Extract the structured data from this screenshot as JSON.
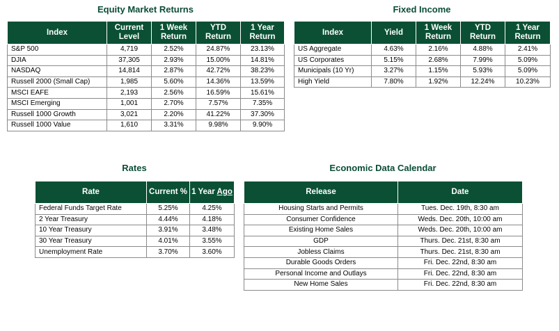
{
  "equity": {
    "title": "Equity Market Returns",
    "headers": [
      "Index",
      "Current Level",
      "1 Week Return",
      "YTD Return",
      "1 Year Return"
    ],
    "rows": [
      [
        "S&P 500",
        "4,719",
        "2.52%",
        "24.87%",
        "23.13%"
      ],
      [
        "DJIA",
        "37,305",
        "2.93%",
        "15.00%",
        "14.81%"
      ],
      [
        "NASDAQ",
        "14,814",
        "2.87%",
        "42.72%",
        "38.23%"
      ],
      [
        "Russell 2000 (Small Cap)",
        "1,985",
        "5.60%",
        "14.36%",
        "13.59%"
      ],
      [
        "MSCI EAFE",
        "2,193",
        "2.56%",
        "16.59%",
        "15.61%"
      ],
      [
        "MSCI Emerging",
        "1,001",
        "2.70%",
        "7.57%",
        "7.35%"
      ],
      [
        "Russell 1000 Growth",
        "3,021",
        "2.20%",
        "41.22%",
        "37.30%"
      ],
      [
        "Russell 1000 Value",
        "1,610",
        "3.31%",
        "9.98%",
        "9.90%"
      ]
    ]
  },
  "fixed": {
    "title": "Fixed Income",
    "headers": [
      "Index",
      "Yield",
      "1 Week Return",
      "YTD Return",
      "1 Year Return"
    ],
    "rows": [
      [
        "US Aggregate",
        "4.63%",
        "2.16%",
        "4.88%",
        "2.41%"
      ],
      [
        "US Corporates",
        "5.15%",
        "2.68%",
        "7.99%",
        "5.09%"
      ],
      [
        "Municipals (10 Yr)",
        "3.27%",
        "1.15%",
        "5.93%",
        "5.09%"
      ],
      [
        "High Yield",
        "7.80%",
        "1.92%",
        "12.24%",
        "10.23%"
      ]
    ]
  },
  "rates": {
    "title": "Rates",
    "headers": [
      "Rate",
      "Current %",
      "1 Year Ago"
    ],
    "rows": [
      [
        "Federal Funds Target Rate",
        "5.25%",
        "4.25%"
      ],
      [
        "2 Year Treasury",
        "4.44%",
        "4.18%"
      ],
      [
        "10 Year Treasury",
        "3.91%",
        "3.48%"
      ],
      [
        "30 Year Treasury",
        "4.01%",
        "3.55%"
      ],
      [
        "Unemployment Rate",
        "3.70%",
        "3.60%"
      ]
    ]
  },
  "calendar": {
    "title": "Economic Data Calendar",
    "headers": [
      "Release",
      "Date"
    ],
    "rows": [
      [
        "Housing Starts and Permits",
        "Tues. Dec. 19th, 8:30 am"
      ],
      [
        "Consumer Confidence",
        "Weds. Dec. 20th, 10:00 am"
      ],
      [
        "Existing Home Sales",
        "Weds. Dec. 20th, 10:00 am"
      ],
      [
        "GDP",
        "Thurs. Dec. 21st, 8:30 am"
      ],
      [
        "Jobless Claims",
        "Thurs. Dec. 21st, 8:30 am"
      ],
      [
        "Durable Goods Orders",
        "Fri. Dec. 22nd, 8:30 am"
      ],
      [
        "Personal Income and Outlays",
        "Fri. Dec. 22nd, 8:30 am"
      ],
      [
        "New Home Sales",
        "Fri. Dec. 22nd, 8:30 am"
      ]
    ]
  }
}
